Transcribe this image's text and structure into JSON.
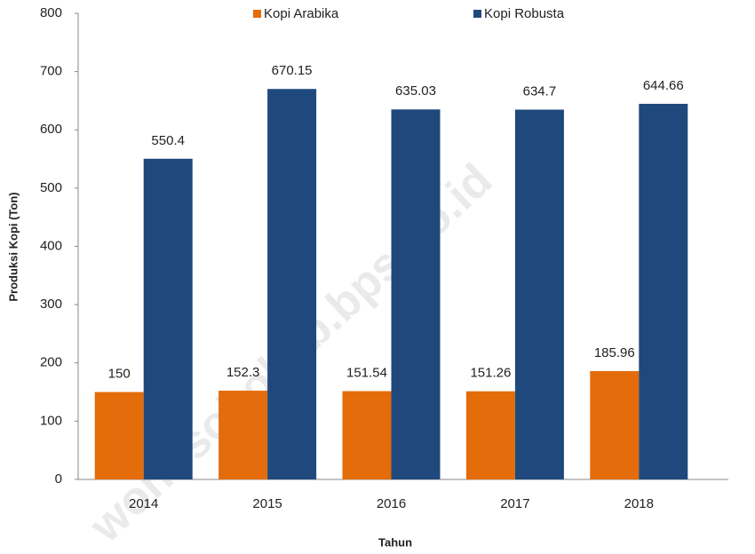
{
  "chart_data": {
    "type": "bar",
    "y_label": "Produksi Kopi (Ton)",
    "x_label": "Tahun",
    "watermark": "wonosobokab.bps.go.id",
    "categories": [
      "2014",
      "2015",
      "2016",
      "2017",
      "2018"
    ],
    "series": [
      {
        "name": "Kopi Arabika",
        "color": "#e46c0a",
        "values": [
          150,
          152.3,
          151.54,
          151.26,
          185.96
        ]
      },
      {
        "name": "Kopi Robusta",
        "color": "#1f497d",
        "values": [
          550.4,
          670.15,
          635.03,
          634.7,
          644.66
        ]
      }
    ],
    "ylim": [
      0,
      800
    ],
    "yticks": [
      0,
      100,
      200,
      300,
      400,
      500,
      600,
      700,
      800
    ],
    "grid": false,
    "legend": "top"
  }
}
